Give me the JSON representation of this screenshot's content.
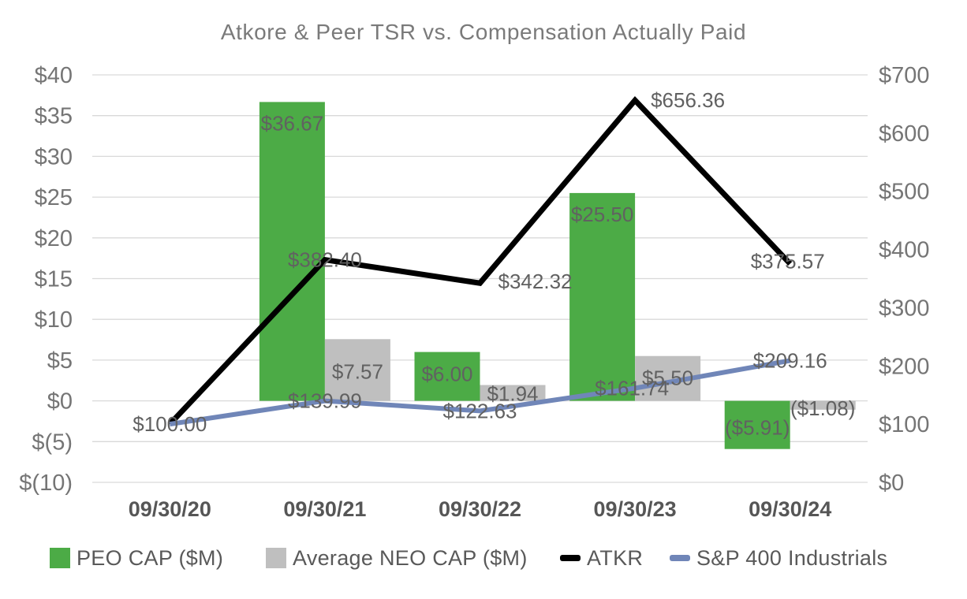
{
  "title": "Atkore & Peer TSR vs. Compensation Actually Paid",
  "chart_data": {
    "type": "combo-bar-line",
    "title": "Atkore & Peer TSR vs. Compensation Actually Paid",
    "categories": [
      "09/30/20",
      "09/30/21",
      "09/30/22",
      "09/30/23",
      "09/30/24"
    ],
    "grid": true,
    "legend_position": "bottom",
    "left_axis": {
      "min": -10,
      "max": 40,
      "ticks": [
        "$40",
        "$35",
        "$30",
        "$25",
        "$20",
        "$15",
        "$10",
        "$5",
        "$0",
        "$(5)",
        "$(10)"
      ],
      "tick_values": [
        40,
        35,
        30,
        25,
        20,
        15,
        10,
        5,
        0,
        -5,
        -10
      ]
    },
    "right_axis": {
      "min": 0,
      "max": 700,
      "ticks": [
        "$700",
        "$600",
        "$500",
        "$400",
        "$300",
        "$200",
        "$100",
        "$0"
      ],
      "tick_values": [
        700,
        600,
        500,
        400,
        300,
        200,
        100,
        0
      ]
    },
    "bar_series": [
      {
        "name": "PEO CAP ($M)",
        "color": "#4cab46",
        "axis": "left",
        "values": [
          null,
          36.67,
          6.0,
          25.5,
          -5.91
        ],
        "labels": [
          null,
          "$36.67",
          "$6.00",
          "$25.50",
          "($5.91)"
        ],
        "label_dy": [
          null,
          27,
          28,
          27,
          -27
        ]
      },
      {
        "name": "Average NEO CAP ($M)",
        "color": "#bfbfbf",
        "axis": "left",
        "values": [
          null,
          7.57,
          1.94,
          5.5,
          -1.08
        ],
        "labels": [
          null,
          "$7.57",
          "$1.94",
          "$5.50",
          "($1.08)"
        ],
        "label_dy": [
          null,
          41,
          11,
          28,
          -2
        ]
      }
    ],
    "line_series": [
      {
        "name": "ATKR",
        "color": "#000000",
        "axis": "right",
        "values": [
          100.0,
          382.4,
          342.32,
          656.36,
          375.57
        ],
        "labels": [
          "$100.00",
          "$382.40",
          "$342.32",
          "$656.36",
          "$375.57"
        ],
        "label_dx": [
          0,
          0,
          70,
          67,
          -3
        ],
        "label_dy": [
          0,
          0,
          -2,
          0,
          -3
        ]
      },
      {
        "name": "S&P 400 Industrials",
        "color": "#7086b8",
        "axis": "right",
        "values": [
          100.0,
          139.99,
          122.63,
          161.74,
          209.16
        ],
        "labels": [
          null,
          "$139.99",
          "$122.63",
          "$161.74",
          "$209.16"
        ],
        "label_dx": [
          0,
          0,
          0,
          -4,
          0
        ],
        "label_dy": [
          0,
          0,
          0,
          0,
          0
        ]
      }
    ],
    "colors": {
      "gridline": "#d9d9d9",
      "axis_tick_text": "#757575",
      "x_axis_text": "#565656",
      "data_label_text": "#616161",
      "title_text": "#7a7a7a",
      "legend_text": "#595959"
    }
  }
}
